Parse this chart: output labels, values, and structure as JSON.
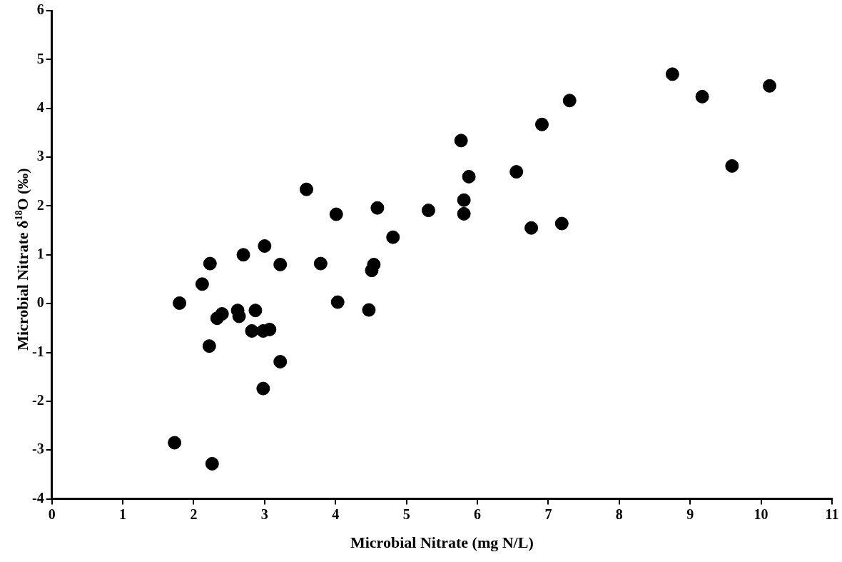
{
  "chart_data": {
    "type": "scatter",
    "xlabel": "Microbial Nitrate (mg N/L)",
    "ylabel": "Microbial Nitrate δ$^{18}$O (‰)",
    "x": [
      1.73,
      1.8,
      2.12,
      2.23,
      2.22,
      2.26,
      2.33,
      2.4,
      2.62,
      2.64,
      2.7,
      2.82,
      2.87,
      2.98,
      3.07,
      3.0,
      2.98,
      3.22,
      3.22,
      3.59,
      3.79,
      4.01,
      4.03,
      4.47,
      4.51,
      4.54,
      4.59,
      4.81,
      5.31,
      5.77,
      5.81,
      5.81,
      5.88,
      6.55,
      6.76,
      6.91,
      7.19,
      7.3,
      8.75,
      9.17,
      9.59,
      10.12
    ],
    "series": [
      {
        "color": "#000000",
        "values": [
          -2.85,
          0.01,
          0.4,
          0.82,
          -0.87,
          -3.28,
          -0.3,
          -0.21,
          -0.14,
          -0.26,
          1.0,
          -0.56,
          -0.14,
          -0.56,
          -0.53,
          1.18,
          -1.74,
          -1.19,
          0.8,
          2.34,
          0.82,
          1.83,
          0.03,
          -0.13,
          0.68,
          0.8,
          1.96,
          1.36,
          1.91,
          3.34,
          2.12,
          1.84,
          2.6,
          2.7,
          1.55,
          3.67,
          1.64,
          4.16,
          4.7,
          4.24,
          2.82,
          4.46
        ]
      }
    ],
    "marker": "circle",
    "xlim": [
      0,
      11
    ],
    "xticks": [
      0,
      1,
      2,
      3,
      4,
      5,
      6,
      7,
      8,
      9,
      10,
      11
    ],
    "ylim": [
      -4,
      6
    ],
    "yticks": [
      -4,
      -3,
      -2,
      -1,
      0,
      1,
      2,
      3,
      4,
      5,
      6
    ]
  }
}
